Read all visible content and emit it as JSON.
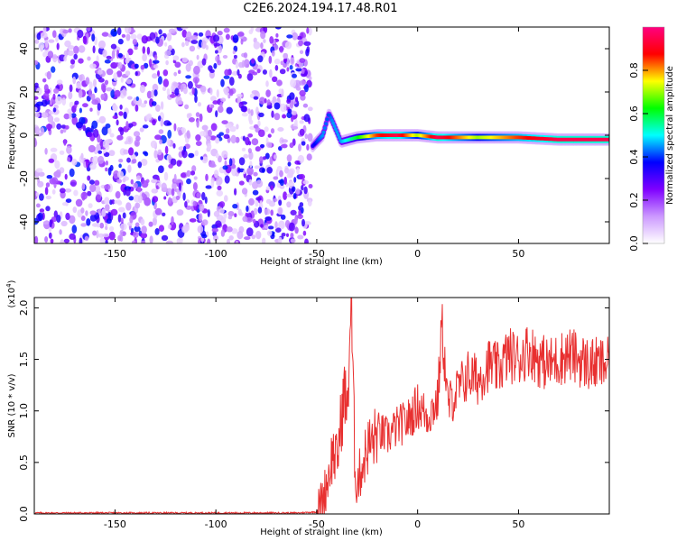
{
  "title": "C2E6.2024.194.17.48.R01",
  "chart_data": [
    {
      "type": "heatmap",
      "xlabel": "Height of straight line (km)",
      "ylabel": "Frequency (Hz)",
      "xlim": [
        -190,
        95
      ],
      "ylim": [
        -50,
        50
      ],
      "xticks": [
        -150,
        -100,
        -50,
        0,
        50
      ],
      "yticks": [
        -40,
        -20,
        0,
        20,
        40
      ],
      "colorbar": {
        "label": "Normalized spectral amplitude",
        "range": [
          0,
          1
        ],
        "ticks": [
          0.0,
          0.2,
          0.4,
          0.6,
          0.8
        ],
        "colormap": [
          "#ffffff",
          "#cc99ff",
          "#7f00ff",
          "#0000ff",
          "#00ffff",
          "#00ff00",
          "#ffff00",
          "#ff0000",
          "#ff0080"
        ]
      },
      "noise_region": {
        "x": [
          -190,
          -53
        ],
        "y": [
          -50,
          50
        ],
        "amplitude": [
          0.05,
          0.4
        ]
      },
      "ridge": [
        {
          "x": -52,
          "y": -5,
          "amplitude": 0.35
        },
        {
          "x": -47,
          "y": 0,
          "amplitude": 0.45
        },
        {
          "x": -44,
          "y": 10,
          "amplitude": 0.4
        },
        {
          "x": -42,
          "y": 6,
          "amplitude": 0.45
        },
        {
          "x": -38,
          "y": -3,
          "amplitude": 0.45
        },
        {
          "x": -30,
          "y": -1,
          "amplitude": 0.6
        },
        {
          "x": -20,
          "y": 0,
          "amplitude": 0.85
        },
        {
          "x": -10,
          "y": 0,
          "amplitude": 0.95
        },
        {
          "x": 0,
          "y": 0,
          "amplitude": 0.7
        },
        {
          "x": 10,
          "y": -1,
          "amplitude": 0.95
        },
        {
          "x": 30,
          "y": -1,
          "amplitude": 0.7
        },
        {
          "x": 50,
          "y": -1,
          "amplitude": 0.85
        },
        {
          "x": 70,
          "y": -2,
          "amplitude": 0.95
        },
        {
          "x": 95,
          "y": -2,
          "amplitude": 0.95
        }
      ]
    },
    {
      "type": "line",
      "xlabel": "Height of straight line (km)",
      "ylabel": "SNR (10 * v/v)",
      "scale_label": "(x10^4)",
      "xlim": [
        -190,
        95
      ],
      "ylim": [
        0,
        2.1
      ],
      "xticks": [
        -150,
        -100,
        -50,
        0,
        50
      ],
      "yticks": [
        0.0,
        0.5,
        1.0,
        1.5,
        2.0
      ],
      "series": [
        {
          "color": "#e83030",
          "x": [
            -190,
            -60,
            -50,
            -47,
            -45,
            -42,
            -40,
            -38,
            -36,
            -35,
            -33,
            -31,
            -30,
            -27,
            -25,
            -22,
            -20,
            -15,
            -10,
            -5,
            0,
            5,
            10,
            12,
            15,
            20,
            25,
            30,
            35,
            40,
            45,
            50,
            55,
            60,
            65,
            70,
            75,
            80,
            85,
            90,
            95
          ],
          "y": [
            0.01,
            0.01,
            0.02,
            0.15,
            0.3,
            0.6,
            0.5,
            0.9,
            1.2,
            0.9,
            2.1,
            0.4,
            0.3,
            0.5,
            0.65,
            0.7,
            0.8,
            0.75,
            0.85,
            0.9,
            1.05,
            0.95,
            1.1,
            1.85,
            1.05,
            1.2,
            1.35,
            1.3,
            1.45,
            1.4,
            1.55,
            1.5,
            1.6,
            1.5,
            1.45,
            1.5,
            1.55,
            1.5,
            1.45,
            1.45,
            1.45
          ]
        }
      ]
    }
  ]
}
